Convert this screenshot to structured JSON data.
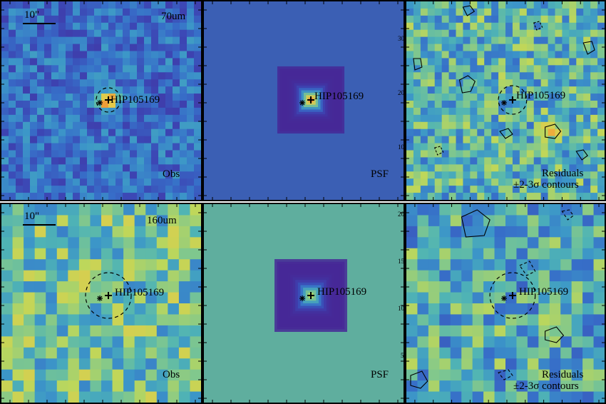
{
  "figure": {
    "target_name": "HIP105169",
    "scale_bar_label": "10\"",
    "rows": [
      {
        "band": "70um",
        "panels": [
          {
            "id": "obs",
            "label": "Obs"
          },
          {
            "id": "psf",
            "label": "PSF",
            "ticks": [
              "30",
              "20",
              "10"
            ]
          },
          {
            "id": "res",
            "label_line1": "Residuals",
            "label_line2": "±2-3σ contours"
          }
        ]
      },
      {
        "band": "160um",
        "panels": [
          {
            "id": "obs",
            "label": "Obs"
          },
          {
            "id": "psf",
            "label": "PSF",
            "ticks": [
              "20",
              "15",
              "10",
              "5"
            ]
          },
          {
            "id": "res",
            "label_line1": "Residuals",
            "label_line2": "±2-3σ contours"
          }
        ]
      }
    ],
    "colors": {
      "obs70_base": "#3d6fb8",
      "psf70_bg": "#3a5fb5",
      "psf160_bg": "#5fae9e",
      "peak": "#e8452b"
    }
  }
}
